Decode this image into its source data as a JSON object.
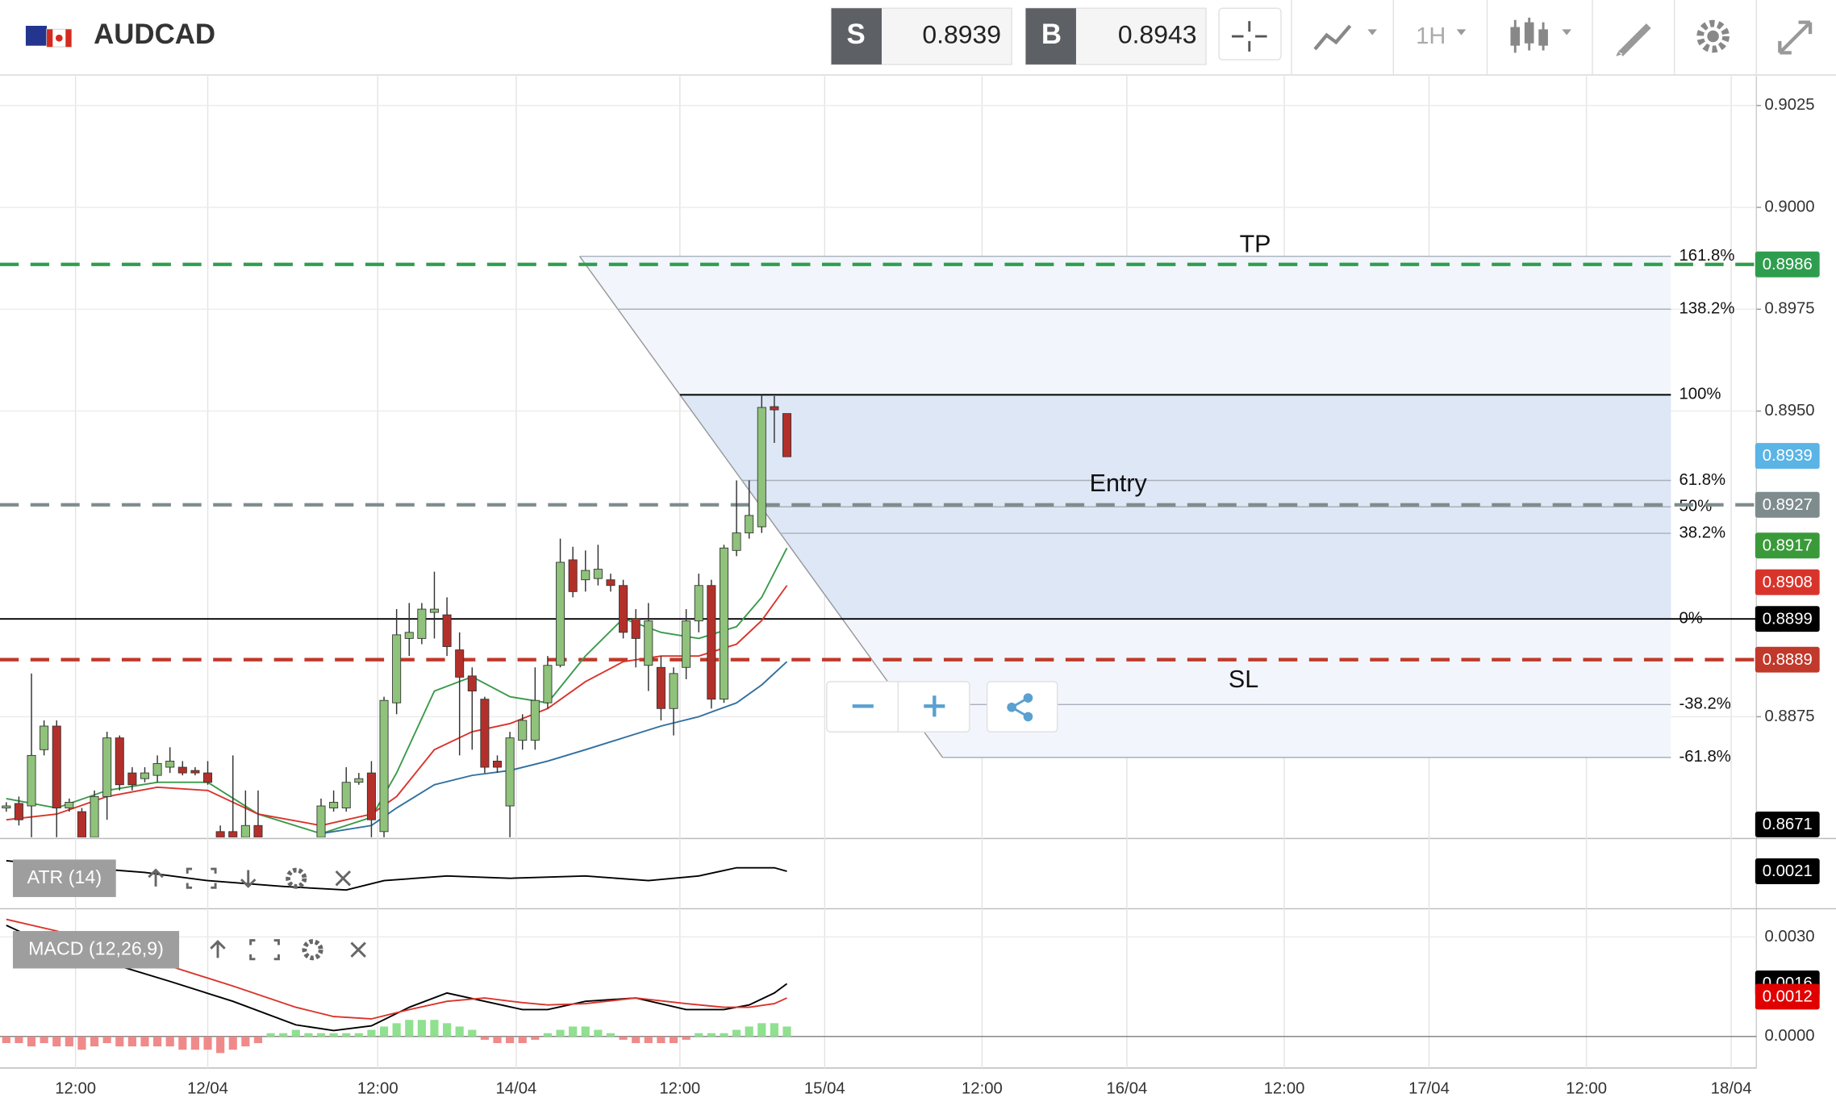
{
  "header": {
    "symbol": "AUDCAD",
    "sell_label": "S",
    "sell_price": "0.8939",
    "buy_label": "B",
    "buy_price": "0.8943",
    "timeframe": "1H"
  },
  "chart_data": [
    {
      "type": "candlestick",
      "xlim": [
        -16.5,
        123
      ],
      "xticks": [
        {
          "value": -10.5,
          "label": "12:00"
        },
        {
          "value": 0,
          "label": "12/04"
        },
        {
          "value": 13.5,
          "label": "12:00"
        },
        {
          "value": 24.5,
          "label": "14/04"
        },
        {
          "value": 37.5,
          "label": "12:00"
        },
        {
          "value": 49,
          "label": "15/04"
        },
        {
          "value": 61.5,
          "label": "12:00"
        },
        {
          "value": 73,
          "label": "16/04"
        },
        {
          "value": 85.5,
          "label": "12:00"
        },
        {
          "value": 97,
          "label": "17/04"
        },
        {
          "value": 109.5,
          "label": "12:00"
        },
        {
          "value": 121,
          "label": "18/04"
        }
      ],
      "ylim": [
        0.88454,
        0.90322
      ],
      "yticks": [
        0.9025,
        {
          "value": 0.9,
          "label": "0.9000"
        },
        0.8975,
        {
          "value": 0.895,
          "label": "0.8950"
        },
        0.8875
      ],
      "grid": true,
      "up_color": "#8fc27a",
      "down_color": "#b3302a",
      "x": [
        -16,
        -15,
        -14,
        -13,
        -12,
        -11,
        -10,
        -9,
        -8,
        -7,
        -6,
        -5,
        -4,
        -3,
        -2,
        -1,
        0,
        1,
        2,
        3,
        4,
        9,
        10,
        11,
        12,
        13,
        14,
        15,
        16,
        17,
        18,
        19,
        20,
        21,
        22,
        23,
        24,
        25,
        26,
        27,
        28,
        29,
        30,
        31,
        32,
        33,
        34,
        35,
        36,
        37,
        38,
        39,
        40,
        41,
        42,
        43,
        44,
        45,
        46
      ],
      "open": [
        0.88526,
        0.88537,
        0.88531,
        0.88669,
        0.88727,
        0.88526,
        0.88517,
        0.88454,
        0.88554,
        0.88698,
        0.88612,
        0.88598,
        0.88606,
        0.88626,
        0.88626,
        0.88618,
        0.88612,
        0.88468,
        0.88468,
        0.88454,
        0.88483,
        0.88454,
        0.88526,
        0.88526,
        0.88589,
        0.88612,
        0.88468,
        0.88784,
        0.88942,
        0.88942,
        0.89006,
        0.89,
        0.88914,
        0.8885,
        0.88793,
        0.88641,
        0.88531,
        0.88692,
        0.88692,
        0.88784,
        0.88876,
        0.89135,
        0.89086,
        0.89089,
        0.89086,
        0.89072,
        0.88991,
        0.88876,
        0.88871,
        0.8877,
        0.88871,
        0.88985,
        0.89072,
        0.88793,
        0.89158,
        0.89201,
        0.89216,
        0.89511,
        0.89494
      ],
      "high": [
        0.8854,
        0.88554,
        0.88856,
        0.88741,
        0.88741,
        0.88549,
        0.88526,
        0.88569,
        0.88713,
        0.88704,
        0.88626,
        0.88626,
        0.88655,
        0.88675,
        0.88641,
        0.88626,
        0.88641,
        0.88483,
        0.88655,
        0.88569,
        0.88569,
        0.88549,
        0.88569,
        0.88626,
        0.88612,
        0.88641,
        0.88799,
        0.89014,
        0.89029,
        0.89029,
        0.89106,
        0.89043,
        0.88957,
        0.88871,
        0.88799,
        0.88655,
        0.88713,
        0.88756,
        0.88871,
        0.88899,
        0.89187,
        0.89167,
        0.89158,
        0.89172,
        0.89101,
        0.89086,
        0.89014,
        0.89029,
        0.88899,
        0.88871,
        0.89014,
        0.89101,
        0.89086,
        0.89172,
        0.8933,
        0.8933,
        0.8954,
        0.89537,
        0.89494
      ],
      "low": [
        0.88517,
        0.88483,
        0.88454,
        0.88655,
        0.88454,
        0.88517,
        0.8844,
        0.8844,
        0.88497,
        0.88569,
        0.88569,
        0.88589,
        0.88589,
        0.88612,
        0.88606,
        0.88606,
        0.88583,
        0.8844,
        0.8844,
        0.8844,
        0.8844,
        0.8844,
        0.88517,
        0.88517,
        0.88583,
        0.88454,
        0.88454,
        0.88756,
        0.88899,
        0.88928,
        0.88942,
        0.88899,
        0.88655,
        0.88669,
        0.88612,
        0.88612,
        0.88454,
        0.88669,
        0.88669,
        0.8877,
        0.88871,
        0.89043,
        0.89057,
        0.89072,
        0.89057,
        0.88942,
        0.88871,
        0.88813,
        0.88741,
        0.88704,
        0.88842,
        0.88957,
        0.8877,
        0.88784,
        0.89144,
        0.89187,
        0.89201,
        0.89422,
        0.89388
      ],
      "close": [
        0.88531,
        0.88497,
        0.88655,
        0.88727,
        0.88526,
        0.8854,
        0.88454,
        0.88554,
        0.88698,
        0.88583,
        0.88583,
        0.88612,
        0.88635,
        0.88641,
        0.88612,
        0.88612,
        0.88589,
        0.88454,
        0.88454,
        0.88483,
        0.88454,
        0.88531,
        0.8854,
        0.88589,
        0.88598,
        0.88497,
        0.8879,
        0.88951,
        0.88957,
        0.89014,
        0.89014,
        0.88922,
        0.88847,
        0.88813,
        0.88626,
        0.88626,
        0.88698,
        0.88741,
        0.8879,
        0.88876,
        0.89129,
        0.89057,
        0.89109,
        0.89112,
        0.89072,
        0.88957,
        0.88942,
        0.88985,
        0.8877,
        0.88856,
        0.88985,
        0.89072,
        0.88793,
        0.89164,
        0.89201,
        0.89244,
        0.89509,
        0.89503,
        0.89388
      ],
      "series": [
        {
          "color": "#3a9a4a",
          "x": [
            -16,
            -12,
            -8,
            -4,
            0,
            4,
            9,
            13,
            15,
            18,
            21,
            24,
            27,
            30,
            33,
            36,
            39,
            42,
            44,
            46
          ],
          "values": [
            0.88549,
            0.88526,
            0.88569,
            0.88589,
            0.88589,
            0.88511,
            0.88463,
            0.88503,
            0.88612,
            0.88813,
            0.88848,
            0.88799,
            0.88784,
            0.88899,
            0.88991,
            0.88957,
            0.88942,
            0.88971,
            0.89043,
            0.89164
          ]
        },
        {
          "color": "#d9342b",
          "x": [
            -16,
            -12,
            -8,
            -4,
            0,
            4,
            9,
            13,
            15,
            18,
            21,
            24,
            27,
            30,
            33,
            36,
            39,
            42,
            44,
            46
          ],
          "values": [
            0.88497,
            0.88511,
            0.88554,
            0.88577,
            0.88569,
            0.88511,
            0.88483,
            0.88511,
            0.88554,
            0.88669,
            0.88713,
            0.88733,
            0.8877,
            0.88836,
            0.88885,
            0.88899,
            0.88899,
            0.88928,
            0.88986,
            0.89072
          ]
        },
        {
          "color": "#2f6f9f",
          "x": [
            9,
            13,
            15,
            18,
            21,
            24,
            27,
            30,
            33,
            36,
            39,
            42,
            44,
            46
          ],
          "values": [
            0.88463,
            0.88483,
            0.88526,
            0.88583,
            0.88606,
            0.88618,
            0.88641,
            0.88669,
            0.88698,
            0.88727,
            0.8875,
            0.88784,
            0.88828,
            0.88885
          ]
        }
      ],
      "levels": [
        {
          "name": "TP",
          "value": 0.8986,
          "color": "#2e9e4e"
        },
        {
          "name": "Entry",
          "value": 0.8927,
          "color": "#7f8c8d"
        },
        {
          "name": "SL",
          "value": 0.8889,
          "color": "#c0392b"
        }
      ],
      "fibonacci": {
        "zero": 0.8899,
        "hundred": 0.8954,
        "fill_inner": "#dde7f6",
        "fill_outer": "#f2f6fc",
        "levels": [
          {
            "value": 161.8,
            "label": "161.8%"
          },
          {
            "value": 138.2,
            "label": "138.2%"
          },
          {
            "value": 100,
            "label": "100%"
          },
          {
            "value": 61.8,
            "label": "61.8%"
          },
          {
            "value": 50,
            "label": "50%"
          },
          {
            "value": 38.2,
            "label": "38.2%"
          },
          {
            "value": 0,
            "label": "0%"
          },
          {
            "value": -38.2,
            "label": "-38.2%"
          },
          {
            "value": -61.8,
            "label": "-61.8%"
          }
        ]
      },
      "price_tags": {
        "values": [
          0.8986,
          0.8939,
          0.8927,
          0.8917,
          0.8908,
          0.8899,
          0.8889
        ],
        "colors": [
          "#2e9e4e",
          "#5ab4e5",
          "#7f8c8d",
          "#3a9a3a",
          "#d9342b",
          "#000000",
          "#c0392b"
        ]
      },
      "low_tag": 0.8671
    },
    {
      "type": "line",
      "title": "ATR (14)",
      "ylim": [
        0.00146,
        0.00266
      ],
      "series": [
        {
          "color": "#000000",
          "x": [
            -16,
            -11,
            -5,
            0,
            6,
            11,
            14,
            19,
            24,
            30,
            35,
            39,
            42,
            45,
            46
          ],
          "values": [
            0.00228,
            0.00218,
            0.00208,
            0.00194,
            0.00184,
            0.00178,
            0.00194,
            0.00202,
            0.00198,
            0.00202,
            0.00194,
            0.00202,
            0.00216,
            0.00216,
            0.0021
          ]
        }
      ],
      "price_tags": {
        "values": [
          0.0021
        ],
        "colors": [
          "#000000"
        ]
      }
    },
    {
      "type": "macd",
      "title": "MACD (12,26,9)",
      "ylim": [
        -0.00095,
        0.00385
      ],
      "yticks": [
        {
          "value": 0.003,
          "label": "0.0030"
        },
        {
          "value": 0,
          "label": "0.0000"
        }
      ],
      "histogram": {
        "pos_color": "#8fe08f",
        "neg_color": "#f08a8a",
        "x": [
          -16,
          -15,
          -14,
          -13,
          -12,
          -11,
          -10,
          -9,
          -8,
          -7,
          -6,
          -5,
          -4,
          -3,
          -2,
          -1,
          0,
          1,
          2,
          3,
          4,
          5,
          6,
          7,
          8,
          9,
          10,
          11,
          12,
          13,
          14,
          15,
          16,
          17,
          18,
          19,
          20,
          21,
          22,
          23,
          24,
          25,
          26,
          27,
          28,
          29,
          30,
          31,
          32,
          33,
          34,
          35,
          36,
          37,
          38,
          39,
          40,
          41,
          42,
          43,
          44,
          45,
          46
        ],
        "values": [
          -0.0002,
          -0.0002,
          -0.0003,
          -0.0002,
          -0.0003,
          -0.0003,
          -0.0004,
          -0.0003,
          -0.0002,
          -0.0003,
          -0.0003,
          -0.0003,
          -0.0003,
          -0.0003,
          -0.0004,
          -0.0004,
          -0.0004,
          -0.0005,
          -0.0004,
          -0.0003,
          -0.0002,
          0.0001,
          0.0001,
          0.0002,
          0.0001,
          0.0001,
          0.0001,
          0.0001,
          0.0001,
          0.0002,
          0.0003,
          0.0004,
          0.0005,
          0.0005,
          0.0005,
          0.0004,
          0.0003,
          0.0002,
          -0.0001,
          -0.0002,
          -0.0002,
          -0.0002,
          -0.0001,
          0.0001,
          0.0002,
          0.0003,
          0.0003,
          0.0002,
          0.0001,
          -0.0001,
          -0.0002,
          -0.0002,
          -0.0002,
          -0.0002,
          -0.0001,
          0.0001,
          0.0001,
          0.0001,
          0.0002,
          0.0003,
          0.0004,
          0.0004,
          0.0003
        ]
      },
      "series": [
        {
          "color": "#000000",
          "x": [
            -16,
            -12,
            -7,
            -3,
            2,
            7,
            10,
            13,
            16,
            19,
            22,
            25,
            27,
            30,
            34,
            38,
            41,
            43,
            45,
            46
          ],
          "values": [
            0.00335,
            0.00265,
            0.00212,
            0.00166,
            0.00106,
            0.00035,
            0.00018,
            0.00032,
            0.00088,
            0.00131,
            0.00106,
            0.00081,
            0.00081,
            0.00106,
            0.00116,
            0.00081,
            0.00081,
            0.00095,
            0.00131,
            0.00159
          ]
        },
        {
          "color": "#d9342b",
          "x": [
            -16,
            -12,
            -7,
            -3,
            2,
            7,
            10,
            13,
            16,
            19,
            22,
            25,
            27,
            30,
            34,
            38,
            41,
            43,
            45,
            46
          ],
          "values": [
            0.00353,
            0.00318,
            0.00265,
            0.00212,
            0.00152,
            0.00088,
            0.0006,
            0.00053,
            0.00081,
            0.00106,
            0.00116,
            0.00102,
            0.00095,
            0.00099,
            0.00116,
            0.00099,
            0.00088,
            0.00088,
            0.00099,
            0.00116
          ]
        }
      ],
      "price_tags": {
        "values": [
          0.0016,
          0.0012
        ],
        "colors": [
          "#000000",
          "#e00000"
        ]
      }
    }
  ]
}
